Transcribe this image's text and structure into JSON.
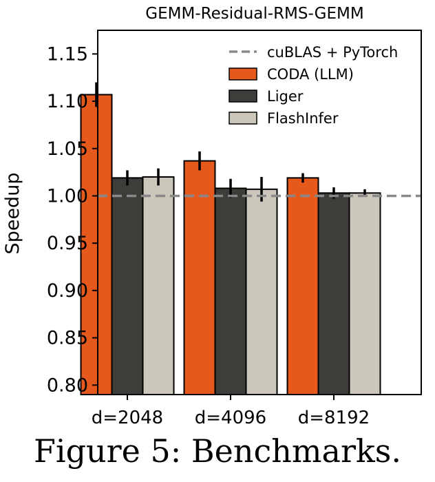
{
  "figure": {
    "caption": "Figure 5: Benchmarks."
  },
  "chart_data": {
    "type": "bar",
    "title": "GEMM-Residual-RMS-GEMM",
    "xlabel": "",
    "ylabel": "Speedup",
    "ylim": [
      0.79,
      1.175
    ],
    "yticks": [
      "0.80",
      "0.85",
      "0.90",
      "0.95",
      "1.00",
      "1.05",
      "1.10",
      "1.15"
    ],
    "categories": [
      "d=2048",
      "d=4096",
      "d=8192"
    ],
    "baseline": {
      "name": "cuBLAS + PyTorch",
      "value": 1.0,
      "color": "#888888",
      "style": "dashed"
    },
    "series": [
      {
        "name": "CODA (LLM)",
        "color": "#e55a1c",
        "values": [
          1.107,
          1.037,
          1.019
        ],
        "errors": [
          0.013,
          0.01,
          0.005
        ]
      },
      {
        "name": "Liger",
        "color": "#3d3d3a",
        "values": [
          1.019,
          1.008,
          1.003
        ],
        "errors": [
          0.008,
          0.01,
          0.006
        ]
      },
      {
        "name": "FlashInfer",
        "color": "#cbc7bb",
        "values": [
          1.02,
          1.007,
          1.003
        ],
        "errors": [
          0.009,
          0.013,
          0.004
        ]
      }
    ],
    "legend_position": "upper-right",
    "grid": false
  }
}
